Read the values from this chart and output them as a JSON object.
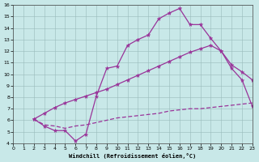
{
  "xlabel": "Windchill (Refroidissement éolien,°C)",
  "bg_color": "#c8e8e8",
  "line_color": "#993399",
  "xlim": [
    0,
    23
  ],
  "ylim": [
    4,
    16
  ],
  "xticks": [
    0,
    1,
    2,
    3,
    4,
    5,
    6,
    7,
    8,
    9,
    10,
    11,
    12,
    13,
    14,
    15,
    16,
    17,
    18,
    19,
    20,
    21,
    22,
    23
  ],
  "yticks": [
    4,
    5,
    6,
    7,
    8,
    9,
    10,
    11,
    12,
    13,
    14,
    15,
    16
  ],
  "line1_x": [
    2,
    3,
    4,
    5,
    6,
    7,
    8,
    9,
    10,
    11,
    12,
    13,
    14,
    15,
    16,
    17,
    18,
    19,
    20,
    21,
    22,
    23
  ],
  "line1_y": [
    6.1,
    5.5,
    5.1,
    5.1,
    4.2,
    4.8,
    8.1,
    10.5,
    10.7,
    12.5,
    13.0,
    13.4,
    14.8,
    15.3,
    15.7,
    14.3,
    14.3,
    13.1,
    12.0,
    10.5,
    9.5,
    7.2
  ],
  "line2_x": [
    2,
    3,
    4,
    5,
    6,
    7,
    8,
    9,
    10,
    11,
    12,
    13,
    14,
    15,
    16,
    17,
    18,
    19,
    20,
    21,
    22,
    23
  ],
  "line2_y": [
    6.1,
    6.6,
    7.1,
    7.5,
    7.8,
    8.1,
    8.4,
    8.7,
    9.1,
    9.5,
    9.9,
    10.3,
    10.7,
    11.1,
    11.5,
    11.9,
    12.2,
    12.5,
    12.0,
    10.8,
    10.2,
    9.5
  ],
  "line3_x": [
    2,
    3,
    4,
    5,
    6,
    7,
    8,
    9,
    10,
    11,
    12,
    13,
    14,
    15,
    16,
    17,
    18,
    19,
    20,
    21,
    22,
    23
  ],
  "line3_y": [
    6.1,
    5.6,
    5.5,
    5.3,
    5.5,
    5.6,
    5.8,
    6.0,
    6.2,
    6.3,
    6.4,
    6.5,
    6.6,
    6.8,
    6.9,
    7.0,
    7.0,
    7.1,
    7.2,
    7.3,
    7.4,
    7.5
  ]
}
